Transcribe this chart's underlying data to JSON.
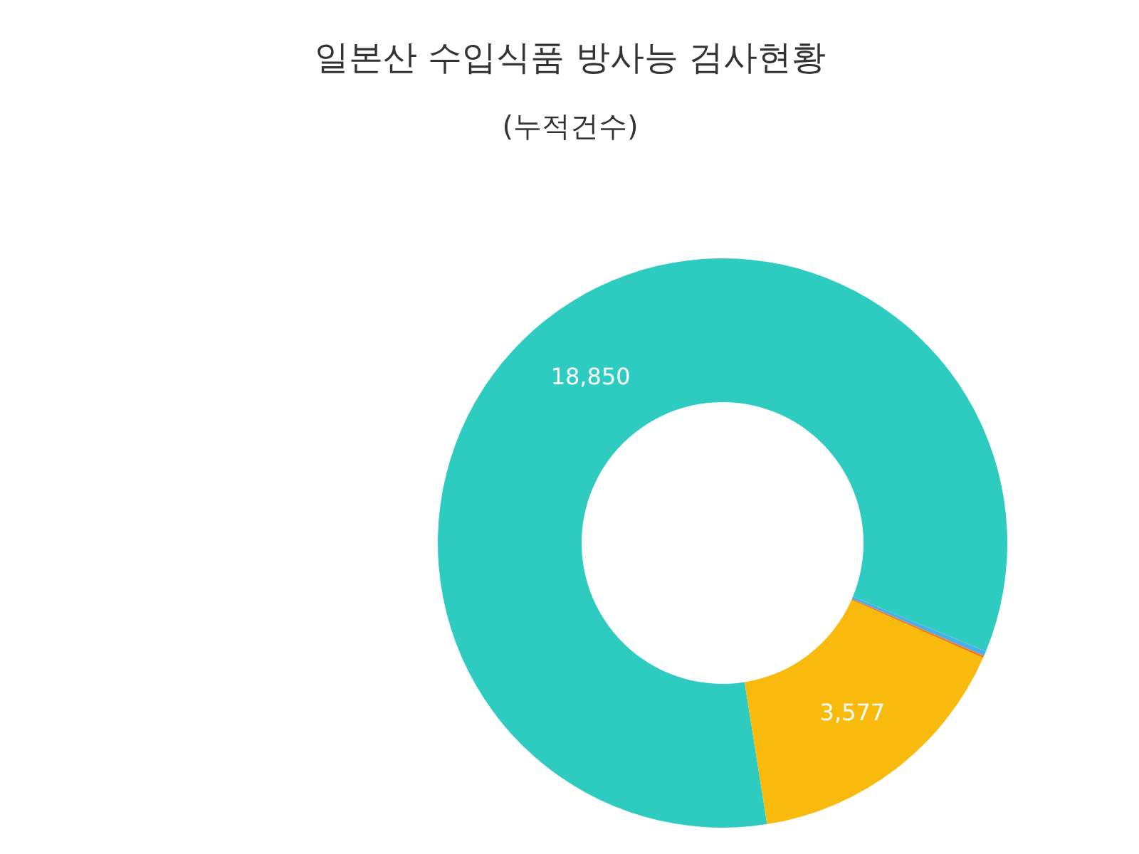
{
  "chart_data": {
    "type": "donut",
    "title": "일본산 수입식품 방사능 검사현황",
    "subtitle": "(누적건수)",
    "categories": [
      null,
      null,
      null,
      null
    ],
    "values": [
      18850,
      60,
      30,
      3577
    ],
    "colors": [
      "#2ecbc1",
      "#4aaee8",
      "#f07c1e",
      "#f8ba0c"
    ],
    "value_labels": [
      "18,850",
      null,
      null,
      "3,577"
    ]
  }
}
